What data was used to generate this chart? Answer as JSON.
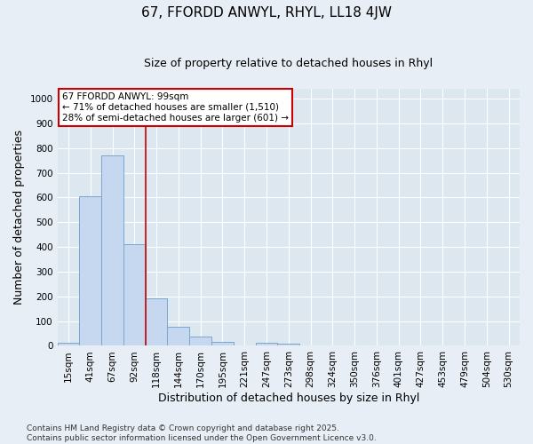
{
  "title1": "67, FFORDD ANWYL, RHYL, LL18 4JW",
  "title2": "Size of property relative to detached houses in Rhyl",
  "xlabel": "Distribution of detached houses by size in Rhyl",
  "ylabel": "Number of detached properties",
  "bar_categories": [
    "15sqm",
    "41sqm",
    "67sqm",
    "92sqm",
    "118sqm",
    "144sqm",
    "170sqm",
    "195sqm",
    "221sqm",
    "247sqm",
    "273sqm",
    "298sqm",
    "324sqm",
    "350sqm",
    "376sqm",
    "401sqm",
    "427sqm",
    "453sqm",
    "479sqm",
    "504sqm",
    "530sqm"
  ],
  "bar_values": [
    12,
    607,
    770,
    412,
    193,
    76,
    38,
    15,
    0,
    12,
    10,
    0,
    0,
    0,
    0,
    0,
    0,
    0,
    0,
    0,
    0
  ],
  "bar_color": "#c5d8ef",
  "bar_edge_color": "#7ba7cc",
  "ylim": [
    0,
    1040
  ],
  "yticks": [
    0,
    100,
    200,
    300,
    400,
    500,
    600,
    700,
    800,
    900,
    1000
  ],
  "vline_x_index": 3,
  "vline_color": "#cc0000",
  "annotation_text_line1": "67 FFORDD ANWYL: 99sqm",
  "annotation_text_line2": "← 71% of detached houses are smaller (1,510)",
  "annotation_text_line3": "28% of semi-detached houses are larger (601) →",
  "annotation_box_color": "#cc0000",
  "annotation_box_fill": "#ffffff",
  "footer1": "Contains HM Land Registry data © Crown copyright and database right 2025.",
  "footer2": "Contains public sector information licensed under the Open Government Licence v3.0.",
  "bg_color": "#e8eef5",
  "plot_bg_color": "#dce7f0",
  "grid_color": "#ffffff",
  "title1_fontsize": 11,
  "title2_fontsize": 9,
  "xlabel_fontsize": 9,
  "ylabel_fontsize": 9,
  "tick_fontsize": 7.5,
  "footer_fontsize": 6.5
}
